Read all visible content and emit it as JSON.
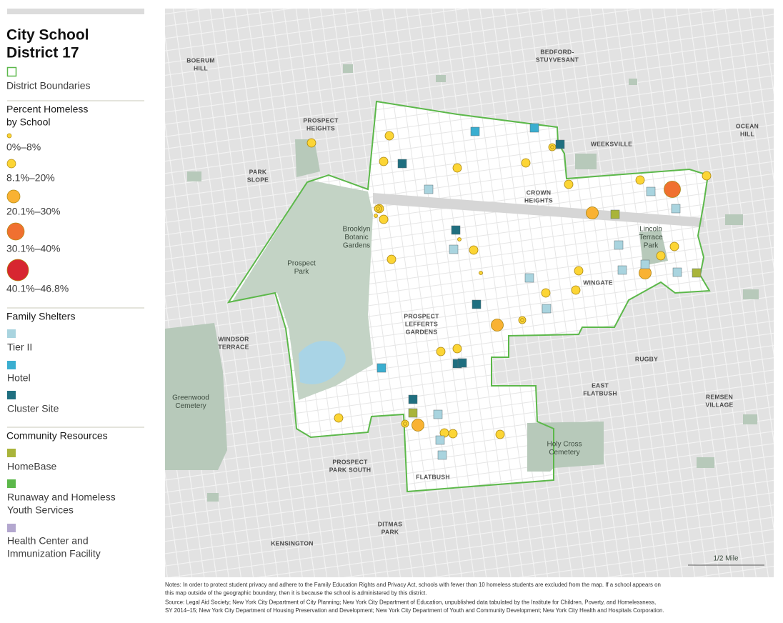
{
  "sidebar": {
    "title": [
      "City School",
      "District 17"
    ],
    "boundary": "District Boundaries",
    "homeless_title": [
      "Percent Homeless",
      "by School"
    ],
    "homeless_bins": [
      "0%–8%",
      "8.1%–20%",
      "20.1%–30%",
      "30.1%–40%",
      "40.1%–46.8%"
    ],
    "shelters_title": "Family Shelters",
    "shelters": [
      "Tier II",
      "Hotel",
      "Cluster Site"
    ],
    "resources_title": "Community Resources",
    "resources": [
      [
        "HomeBase"
      ],
      [
        "Runaway and Homeless",
        "Youth Services"
      ],
      [
        "Health Center and",
        "Immunization Facility"
      ]
    ]
  },
  "map": {
    "labels": [
      [
        "BOERUM",
        "HILL"
      ],
      [
        "BEDFORD-",
        "STUYVESANT"
      ],
      [
        "PROSPECT",
        "HEIGHTS"
      ],
      [
        "WEEKSVILLE"
      ],
      [
        "OCEAN",
        "HILL"
      ],
      [
        "PARK",
        "SLOPE"
      ],
      [
        "CROWN",
        "HEIGHTS"
      ],
      [
        "WINGATE"
      ],
      [
        "PROSPECT",
        "LEFFERTS",
        "GARDENS"
      ],
      [
        "WINDSOR",
        "TERRACE"
      ],
      [
        "RUGBY"
      ],
      [
        "EAST",
        "FLATBUSH"
      ],
      [
        "REMSEN",
        "VILLAGE"
      ],
      [
        "PROSPECT",
        "PARK SOUTH"
      ],
      [
        "FLATBUSH"
      ],
      [
        "DITMAS",
        "PARK"
      ],
      [
        "KENSINGTON"
      ]
    ],
    "park_labels": [
      [
        "Brooklyn",
        "Botanic",
        "Gardens"
      ],
      [
        "Lincoln",
        "Terrace",
        "Park"
      ],
      [
        "Prospect",
        "Park"
      ],
      [
        "Greenwood",
        "Cemetery"
      ],
      [
        "Holy Cross",
        "Cemetery"
      ]
    ],
    "scale": "1/2 Mile"
  },
  "notes": [
    "Notes: In order to protect student privacy and adhere to the Family Education Rights and Privacy Act, schools with fewer than 10 homeless students are excluded from the map. If a school appears on",
    "this map outside of the geographic boundary, then it is because the school is administered by this district.",
    "Source: Legal Aid Society; New York City Department of City Planning; New York City Department of Education, unpublished data tabulated by the Institute for Children, Poverty, and Homelessness,",
    "SY 2014–15; New York City Department of Housing Preservation and Development; New York City Department of Youth and Community Development; New York City Health and Hospitals Corporation."
  ]
}
